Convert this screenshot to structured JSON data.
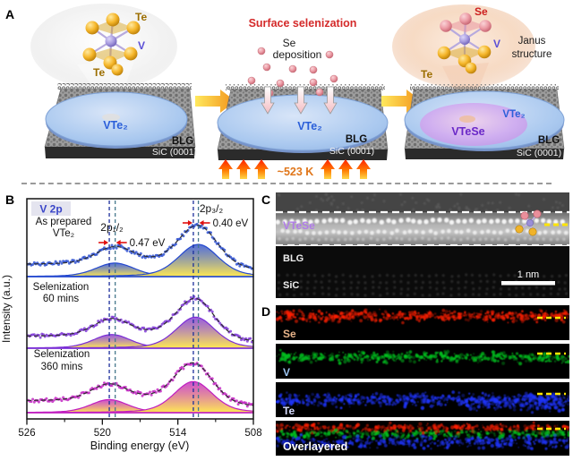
{
  "figure": {
    "panel_labels": {
      "a": "A",
      "b": "B",
      "c": "C",
      "d": "D"
    }
  },
  "panel_a": {
    "scene_initial": {
      "atom_labels": {
        "te_top": "Te",
        "v": "V",
        "te_bottom": "Te"
      },
      "flake_label": "VTe₂",
      "graphene_label": "BLG",
      "substrate_label": "SiC (0001)"
    },
    "scene_process": {
      "title": "Surface selenization",
      "title_color": "#d42a2a",
      "deposition_label_line1": "Se",
      "deposition_label_line2": "deposition",
      "flake_label": "VTe₂",
      "graphene_label": "BLG",
      "substrate_label": "SiC (0001)",
      "temperature_label": "~523 K",
      "temperature_color": "#e0761a"
    },
    "scene_result": {
      "atom_labels": {
        "se": "Se",
        "v": "V",
        "te": "Te"
      },
      "structure_label_line1": "Janus",
      "structure_label_line2": "structure",
      "flake_label": "VTe₂",
      "janus_flake_label": "VTeSe",
      "graphene_label": "BLG",
      "substrate_label": "SiC (0001)"
    }
  },
  "chart_data": {
    "type": "line",
    "title": "V 2p",
    "title_color": "#3a46c8",
    "title_bg": "#e4e4ef",
    "xlabel": "Binding energy (eV)",
    "ylabel": "Intensity (a.u.)",
    "x_range": [
      526,
      508
    ],
    "x_ticks": [
      526,
      520,
      514,
      508
    ],
    "x_minor_ticks": [
      523,
      517,
      511
    ],
    "axis_reversed": true,
    "grid": false,
    "legend_position": "inside-left",
    "annotations": {
      "peak_label_1": "2p₁/₂",
      "peak_label_2": "2p₃/₂",
      "shift_label_1": "0.47 eV",
      "shift_label_2": "0.40 eV",
      "arrow_color": "#e01010"
    },
    "guides": {
      "selenized_ev": [
        519.45,
        512.77
      ],
      "as_prepared_ev": [
        518.98,
        512.37
      ],
      "selenized_color": "#1c2f9c",
      "as_prepared_color": "#46788c"
    },
    "series": [
      {
        "label_line1": "As prepared",
        "label_line2": "VTe₂",
        "color": "#2448cf",
        "peaks": [
          {
            "center_ev": 519.0,
            "rel_amp": 0.42,
            "width_ev": 1.5
          },
          {
            "center_ev": 512.37,
            "rel_amp": 1.0,
            "width_ev": 1.55
          }
        ]
      },
      {
        "label_line1": "Selenization",
        "label_line2": "60 mins",
        "color": "#7b2fd6",
        "peaks": [
          {
            "center_ev": 519.25,
            "rel_amp": 0.44,
            "width_ev": 1.45
          },
          {
            "center_ev": 512.6,
            "rel_amp": 1.0,
            "width_ev": 1.5
          }
        ]
      },
      {
        "label_line1": "Selenization",
        "label_line2": "360 mins",
        "color": "#c01ec0",
        "peaks": [
          {
            "center_ev": 519.45,
            "rel_amp": 0.42,
            "width_ev": 1.45
          },
          {
            "center_ev": 512.77,
            "rel_amp": 1.0,
            "width_ev": 1.5
          }
        ]
      }
    ],
    "component_fill_bottom": "#ffe84a",
    "fit_line_style": "dashed"
  },
  "panel_c": {
    "layer_label": "VTeSe",
    "layer_label_color": "#b07ce8",
    "graphene_label": "BLG",
    "substrate_label": "SiC",
    "scale_bar_label": "1 nm",
    "dash_marker_color": "#ffe400"
  },
  "panel_d": {
    "maps": [
      {
        "label": "Se",
        "map_color": "#ff1e00",
        "label_color": "#e8b48a"
      },
      {
        "label": "V",
        "map_color": "#00c21e",
        "label_color": "#9cc4f0"
      },
      {
        "label": "Te",
        "map_color": "#1e35ff",
        "label_color": "#d8dcff"
      },
      {
        "label": "Overlayered",
        "map_color": "mixed",
        "label_color": "#ffffff"
      }
    ],
    "dash_marker_color": "#ffe400"
  }
}
